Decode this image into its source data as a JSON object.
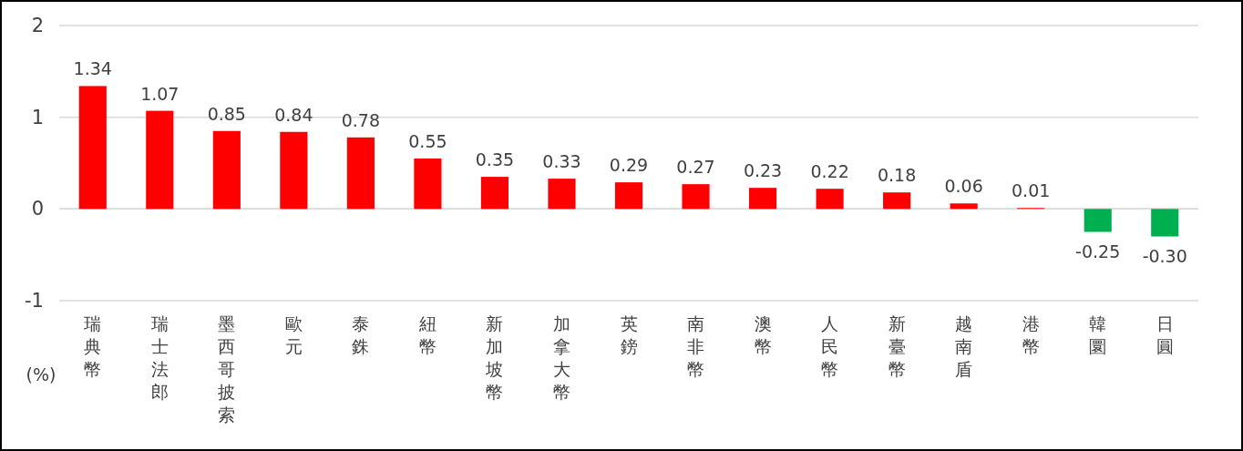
{
  "chart_data": {
    "type": "bar",
    "categories": [
      "瑞典幣",
      "瑞士法郎",
      "墨西哥披索",
      "歐元",
      "泰銖",
      "紐幣",
      "新加坡幣",
      "加拿大幣",
      "英鎊",
      "南非幣",
      "澳幣",
      "人民幣",
      "新臺幣",
      "越南盾",
      "港幣",
      "韓圜",
      "日圓"
    ],
    "values": [
      1.34,
      1.07,
      0.85,
      0.84,
      0.78,
      0.55,
      0.35,
      0.33,
      0.29,
      0.27,
      0.23,
      0.22,
      0.18,
      0.06,
      0.01,
      -0.25,
      -0.3
    ],
    "value_labels": [
      "1.34",
      "1.07",
      "0.85",
      "0.84",
      "0.78",
      "0.55",
      "0.35",
      "0.33",
      "0.29",
      "0.27",
      "0.23",
      "0.22",
      "0.18",
      "0.06",
      "0.01",
      "-0.25",
      "-0.30"
    ],
    "colors": [
      "#ff0000",
      "#ff0000",
      "#ff0000",
      "#ff0000",
      "#ff0000",
      "#ff0000",
      "#ff0000",
      "#ff0000",
      "#ff0000",
      "#ff0000",
      "#ff0000",
      "#ff0000",
      "#ff0000",
      "#ff0000",
      "#ff0000",
      "#00b050",
      "#00b050"
    ],
    "ylabel": "(%)",
    "ylim": [
      -1,
      2
    ],
    "yticks": [
      -1,
      0,
      1,
      2
    ],
    "grid": "y"
  }
}
